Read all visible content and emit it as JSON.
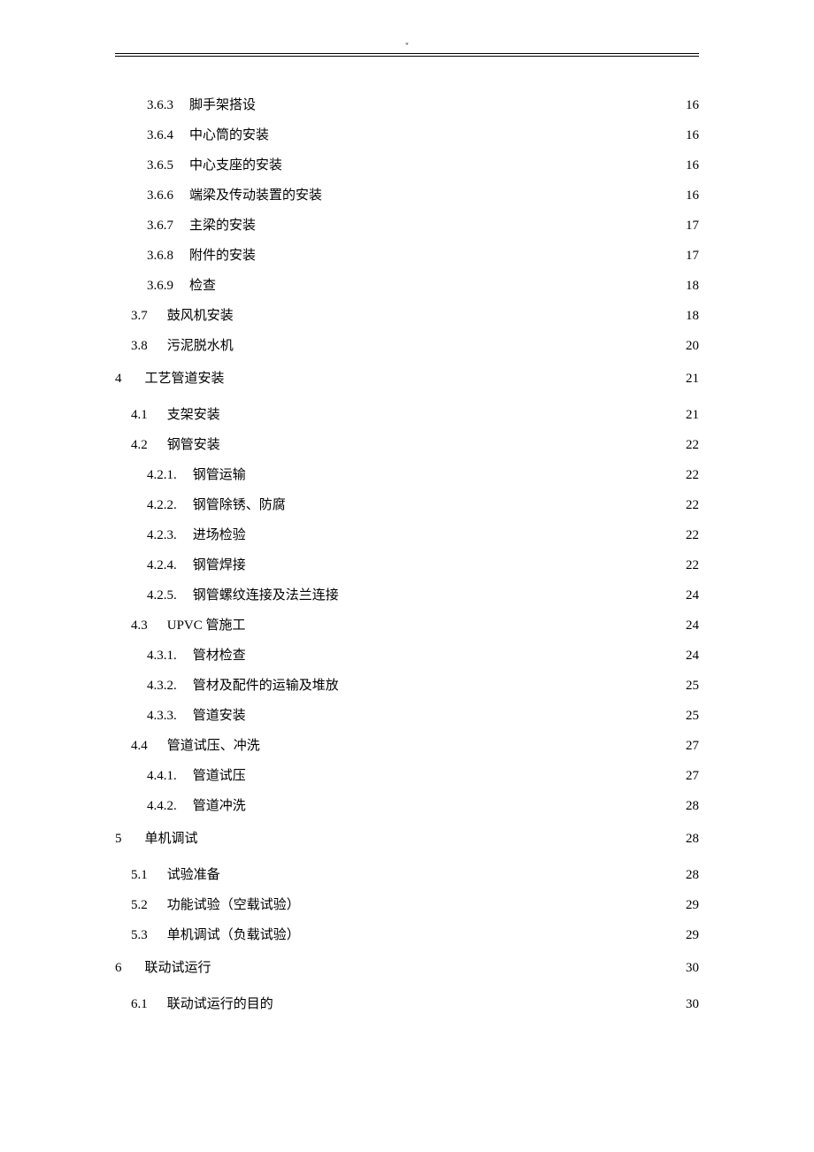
{
  "header_mark": "\"",
  "entries": [
    {
      "level": 3,
      "num": "3.6.3",
      "title": "脚手架搭设",
      "page": "16"
    },
    {
      "level": 3,
      "num": "3.6.4",
      "title": "中心筒的安装",
      "page": "16"
    },
    {
      "level": 3,
      "num": "3.6.5",
      "title": "中心支座的安装",
      "page": "16"
    },
    {
      "level": 3,
      "num": "3.6.6",
      "title": "端梁及传动装置的安装",
      "page": "16"
    },
    {
      "level": 3,
      "num": "3.6.7",
      "title": "主梁的安装",
      "page": "17"
    },
    {
      "level": 3,
      "num": "3.6.8",
      "title": "附件的安装",
      "page": "17"
    },
    {
      "level": 3,
      "num": "3.6.9",
      "title": "检查",
      "page": "18"
    },
    {
      "level": 2,
      "num": "3.7",
      "title": "鼓风机安装",
      "page": "18"
    },
    {
      "level": 2,
      "num": "3.8",
      "title": "污泥脱水机",
      "page": "20"
    },
    {
      "level": 1,
      "num": "4",
      "title": "工艺管道安装",
      "page": "21"
    },
    {
      "level": 2,
      "num": "4.1",
      "title": "支架安装",
      "page": "21"
    },
    {
      "level": 2,
      "num": "4.2",
      "title": "钢管安装",
      "page": "22"
    },
    {
      "level": 3,
      "num": "4.2.1.",
      "title": "钢管运输",
      "page": "22"
    },
    {
      "level": 3,
      "num": "4.2.2.",
      "title": "钢管除锈、防腐",
      "page": "22"
    },
    {
      "level": 3,
      "num": "4.2.3.",
      "title": "进场检验",
      "page": "22"
    },
    {
      "level": 3,
      "num": "4.2.4.",
      "title": "钢管焊接",
      "page": "22"
    },
    {
      "level": 3,
      "num": "4.2.5.",
      "title": "钢管螺纹连接及法兰连接",
      "page": "24"
    },
    {
      "level": 2,
      "num": "4.3",
      "title": "UPVC 管施工",
      "page": "24"
    },
    {
      "level": 3,
      "num": "4.3.1.",
      "title": "管材检查",
      "page": "24"
    },
    {
      "level": 3,
      "num": "4.3.2.",
      "title": "管材及配件的运输及堆放",
      "page": "25"
    },
    {
      "level": 3,
      "num": "4.3.3.",
      "title": "管道安装",
      "page": "25"
    },
    {
      "level": 2,
      "num": "4.4",
      "title": "管道试压、冲洗",
      "page": "27"
    },
    {
      "level": 3,
      "num": "4.4.1.",
      "title": "管道试压",
      "page": "27"
    },
    {
      "level": 3,
      "num": "4.4.2.",
      "title": "管道冲洗",
      "page": "28"
    },
    {
      "level": 1,
      "num": "5",
      "title": "单机调试",
      "page": "28"
    },
    {
      "level": 2,
      "num": "5.1",
      "title": "试验准备",
      "page": "28"
    },
    {
      "level": 2,
      "num": "5.2",
      "title": "功能试验（空载试验）",
      "page": "29"
    },
    {
      "level": 2,
      "num": "5.3",
      "title": "单机调试（负载试验）",
      "page": "29"
    },
    {
      "level": 1,
      "num": "6",
      "title": "联动试运行",
      "page": "30"
    },
    {
      "level": 2,
      "num": "6.1",
      "title": "联动试运行的目的",
      "page": "30"
    }
  ]
}
